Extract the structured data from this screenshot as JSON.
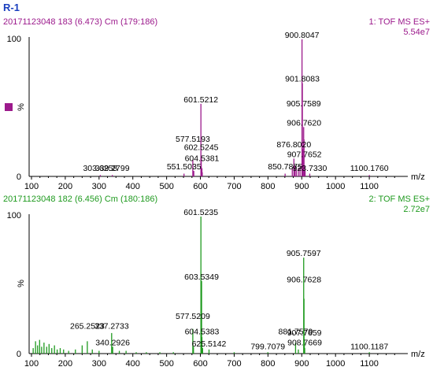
{
  "figure_label": "R-1",
  "colors": {
    "top": "#9c1a8c",
    "bottom": "#1f9a1f",
    "label": "#1a3fbf",
    "axis": "#000000"
  },
  "chart_data": [
    {
      "type": "line",
      "header_left": "20171123048 183 (6.473) Cm (179:186)",
      "header_right_1": "1: TOF MS ES+",
      "header_right_2": "5.54e7",
      "xlabel": "m/z",
      "ylabel": "%",
      "ytick_top": "100",
      "ytick_bottom": "0",
      "xlim": [
        100,
        1200
      ],
      "ylim": [
        0,
        100
      ],
      "x_ticks": [
        100,
        200,
        300,
        400,
        500,
        600,
        700,
        800,
        900,
        1000,
        1100
      ],
      "peaks": [
        {
          "x": 303.6258,
          "y": 1
        },
        {
          "x": 339.2799,
          "y": 1
        },
        {
          "x": 551.5035,
          "y": 2
        },
        {
          "x": 577.5193,
          "y": 12
        },
        {
          "x": 580.5,
          "y": 4
        },
        {
          "x": 601.5212,
          "y": 53
        },
        {
          "x": 602.5245,
          "y": 14
        },
        {
          "x": 604.5381,
          "y": 6
        },
        {
          "x": 605.5,
          "y": 3
        },
        {
          "x": 850.7875,
          "y": 2
        },
        {
          "x": 872.0,
          "y": 6
        },
        {
          "x": 876.802,
          "y": 13
        },
        {
          "x": 880.0,
          "y": 8
        },
        {
          "x": 884.0,
          "y": 5
        },
        {
          "x": 890.0,
          "y": 6
        },
        {
          "x": 895.0,
          "y": 7
        },
        {
          "x": 900.8047,
          "y": 100
        },
        {
          "x": 901.8083,
          "y": 68
        },
        {
          "x": 903.0,
          "y": 20
        },
        {
          "x": 905.7589,
          "y": 36
        },
        {
          "x": 906.762,
          "y": 27
        },
        {
          "x": 907.7652,
          "y": 8
        },
        {
          "x": 910.0,
          "y": 4
        },
        {
          "x": 923.733,
          "y": 2
        },
        {
          "x": 1100.176,
          "y": 1
        }
      ],
      "labels": [
        {
          "text": "900.8047",
          "x": 900.8047,
          "y": 100
        },
        {
          "text": "901.8083",
          "x": 901.8083,
          "y": 68
        },
        {
          "text": "905.7589",
          "x": 905.7589,
          "y": 50
        },
        {
          "text": "906.7620",
          "x": 906.762,
          "y": 36
        },
        {
          "text": "601.5212",
          "x": 601.5212,
          "y": 53
        },
        {
          "text": "577.5193",
          "x": 577.5193,
          "y": 24
        },
        {
          "text": "602.5245",
          "x": 602.5245,
          "y": 18
        },
        {
          "text": "604.5381",
          "x": 604.5381,
          "y": 10
        },
        {
          "text": "876.8020",
          "x": 876.802,
          "y": 20
        },
        {
          "text": "907.7652",
          "x": 907.7652,
          "y": 13
        },
        {
          "text": "551.5035",
          "x": 551.5035,
          "y": 4
        },
        {
          "text": "850.7875",
          "x": 850.7875,
          "y": 4
        },
        {
          "text": "923.7330",
          "x": 923.733,
          "y": 3
        },
        {
          "text": "303.6258",
          "x": 303.6258,
          "y": 3
        },
        {
          "text": "339.2799",
          "x": 339.2799,
          "y": 3
        },
        {
          "text": "1100.1760",
          "x": 1100.176,
          "y": 3
        }
      ]
    },
    {
      "type": "line",
      "header_left": "20171123048 182 (6.456) Cm (180:186)",
      "header_right_1": "2: TOF MS ES+",
      "header_right_2": "2.72e7",
      "xlabel": "m/z",
      "ylabel": "%",
      "ytick_top": "100",
      "ytick_bottom": "0",
      "xlim": [
        100,
        1200
      ],
      "ylim": [
        0,
        100
      ],
      "x_ticks": [
        100,
        200,
        300,
        400,
        500,
        600,
        700,
        800,
        900,
        1000,
        1100
      ],
      "peaks": [
        {
          "x": 105,
          "y": 4
        },
        {
          "x": 112,
          "y": 9
        },
        {
          "x": 118,
          "y": 6
        },
        {
          "x": 124,
          "y": 10
        },
        {
          "x": 130,
          "y": 5
        },
        {
          "x": 137,
          "y": 8
        },
        {
          "x": 145,
          "y": 5
        },
        {
          "x": 152,
          "y": 7
        },
        {
          "x": 160,
          "y": 4
        },
        {
          "x": 168,
          "y": 6
        },
        {
          "x": 176,
          "y": 3
        },
        {
          "x": 185,
          "y": 4
        },
        {
          "x": 195,
          "y": 3
        },
        {
          "x": 210,
          "y": 2
        },
        {
          "x": 230,
          "y": 3
        },
        {
          "x": 250,
          "y": 6
        },
        {
          "x": 265.2523,
          "y": 9
        },
        {
          "x": 280,
          "y": 3
        },
        {
          "x": 300,
          "y": 2
        },
        {
          "x": 337.2733,
          "y": 15
        },
        {
          "x": 340.2926,
          "y": 5
        },
        {
          "x": 360,
          "y": 2
        },
        {
          "x": 380,
          "y": 2
        },
        {
          "x": 410,
          "y": 1
        },
        {
          "x": 440,
          "y": 1
        },
        {
          "x": 480,
          "y": 1
        },
        {
          "x": 520,
          "y": 1
        },
        {
          "x": 577.5209,
          "y": 18
        },
        {
          "x": 579.5,
          "y": 5
        },
        {
          "x": 601.5235,
          "y": 100
        },
        {
          "x": 602.5,
          "y": 32
        },
        {
          "x": 603.5349,
          "y": 53
        },
        {
          "x": 604.5383,
          "y": 12
        },
        {
          "x": 606.5,
          "y": 4
        },
        {
          "x": 625.5142,
          "y": 3
        },
        {
          "x": 700,
          "y": 1
        },
        {
          "x": 799.7079,
          "y": 1
        },
        {
          "x": 881.7579,
          "y": 8
        },
        {
          "x": 890,
          "y": 3
        },
        {
          "x": 905.7597,
          "y": 70
        },
        {
          "x": 906.7628,
          "y": 40
        },
        {
          "x": 907.7659,
          "y": 10
        },
        {
          "x": 908.7669,
          "y": 4
        },
        {
          "x": 1100.1187,
          "y": 1
        }
      ],
      "labels": [
        {
          "text": "601.5235",
          "x": 601.5235,
          "y": 100
        },
        {
          "text": "603.5349",
          "x": 603.5349,
          "y": 53
        },
        {
          "text": "905.7597",
          "x": 905.7597,
          "y": 70
        },
        {
          "text": "906.7628",
          "x": 906.7628,
          "y": 51
        },
        {
          "text": "577.5209",
          "x": 577.5209,
          "y": 24
        },
        {
          "text": "604.5383",
          "x": 604.5383,
          "y": 13
        },
        {
          "text": "625.5142",
          "x": 625.5142,
          "y": 4
        },
        {
          "text": "265.2523",
          "x": 265.2523,
          "y": 17
        },
        {
          "text": "337.2733",
          "x": 337.2733,
          "y": 17
        },
        {
          "text": "340.2926",
          "x": 340.2926,
          "y": 5
        },
        {
          "text": "881.7579",
          "x": 881.7579,
          "y": 13
        },
        {
          "text": "907.7659",
          "x": 907.7659,
          "y": 12
        },
        {
          "text": "908.7669",
          "x": 908.7669,
          "y": 5
        },
        {
          "text": "799.7079",
          "x": 799.7079,
          "y": 2
        },
        {
          "text": "1100.1187",
          "x": 1100.1187,
          "y": 2
        }
      ]
    }
  ]
}
